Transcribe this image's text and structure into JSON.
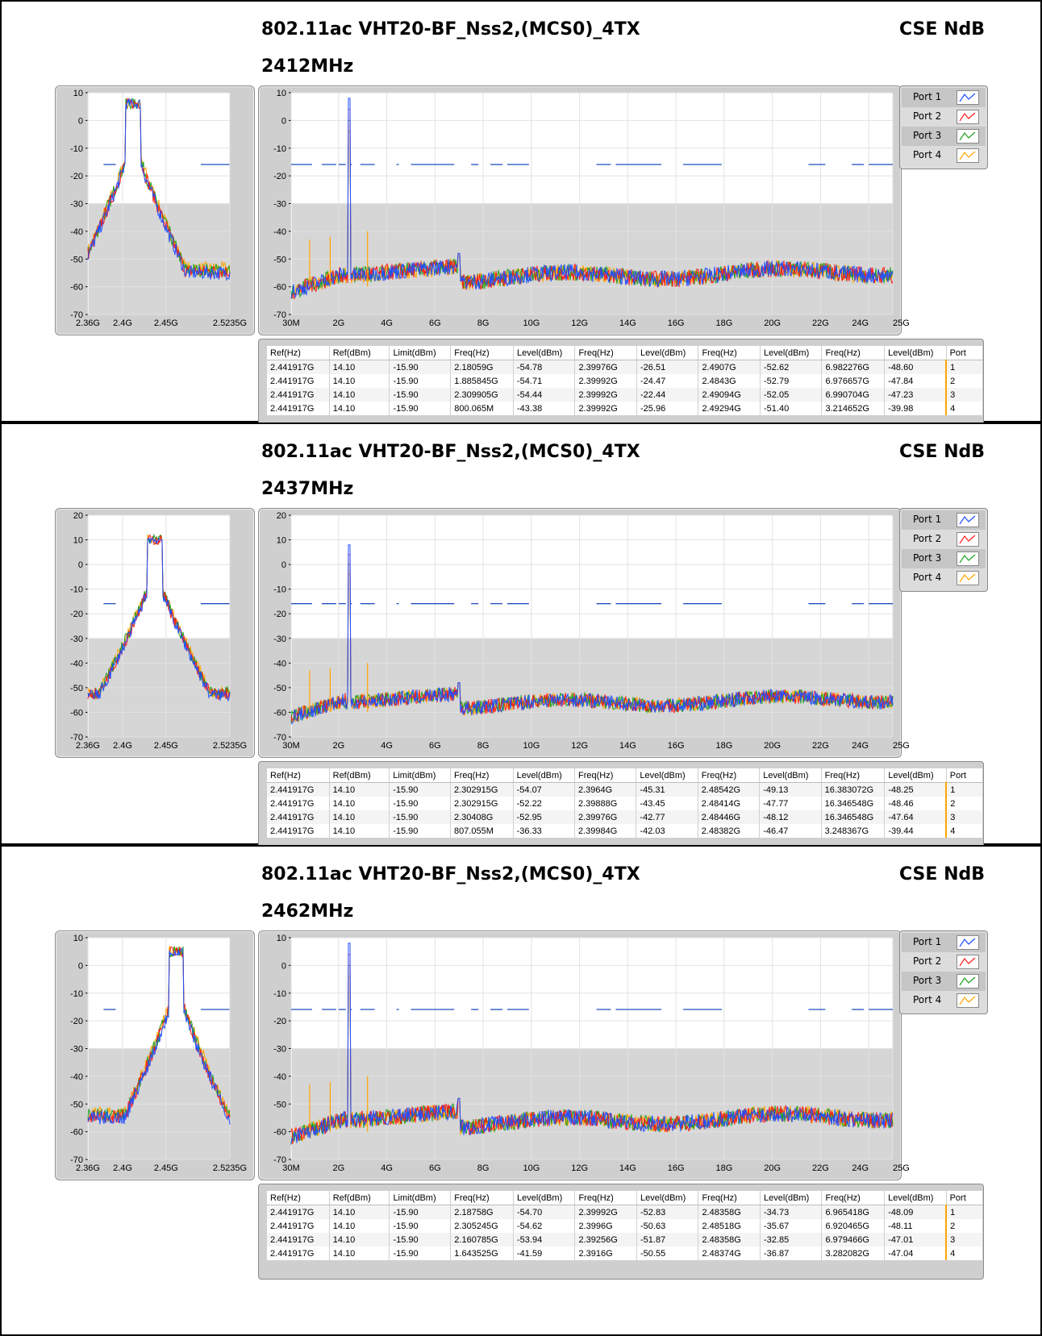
{
  "sections": [
    {
      "title": "802.11ac VHT20-BF_Nss2,(MCS0)_4TX",
      "subtitle": "2412MHz",
      "right_label": "CSE NdB",
      "table": [
        [
          "2.441917G",
          "14.10",
          "-15.90",
          "2.18059G",
          "-54.78",
          "2.39976G",
          "-26.51",
          "2.4907G",
          "-52.62",
          "6.982276G",
          "-48.60",
          "1"
        ],
        [
          "2.441917G",
          "14.10",
          "-15.90",
          "1.885845G",
          "-54.71",
          "2.39992G",
          "-24.47",
          "2.4843G",
          "-52.79",
          "6.976657G",
          "-47.84",
          "2"
        ],
        [
          "2.441917G",
          "14.10",
          "-15.90",
          "2.309905G",
          "-54.44",
          "2.39992G",
          "-22.44",
          "2.49094G",
          "-52.05",
          "6.990704G",
          "-47.23",
          "3"
        ],
        [
          "2.441917G",
          "14.10",
          "-15.90",
          "800.065M",
          "-43.38",
          "2.39992G",
          "-25.96",
          "2.49294G",
          "-51.40",
          "3.214652G",
          "-39.98",
          "4"
        ]
      ]
    },
    {
      "title": "802.11ac VHT20-BF_Nss2,(MCS0)_4TX",
      "subtitle": "2437MHz",
      "right_label": "CSE NdB",
      "table": [
        [
          "2.441917G",
          "14.10",
          "-15.90",
          "2.302915G",
          "-54.07",
          "2.3964G",
          "-45.31",
          "2.48542G",
          "-49.13",
          "16.383072G",
          "-48.25",
          "1"
        ],
        [
          "2.441917G",
          "14.10",
          "-15.90",
          "2.302915G",
          "-52.22",
          "2.39888G",
          "-43.45",
          "2.48414G",
          "-47.77",
          "16.346548G",
          "-48.46",
          "2"
        ],
        [
          "2.441917G",
          "14.10",
          "-15.90",
          "2.30408G",
          "-52.95",
          "2.39976G",
          "-42.77",
          "2.48446G",
          "-48.12",
          "16.346548G",
          "-47.64",
          "3"
        ],
        [
          "2.441917G",
          "14.10",
          "-15.90",
          "807.055M",
          "-36.33",
          "2.39984G",
          "-42.03",
          "2.48382G",
          "-46.47",
          "3.248367G",
          "-39.44",
          "4"
        ]
      ]
    },
    {
      "title": "802.11ac VHT20-BF_Nss2,(MCS0)_4TX",
      "subtitle": "2462MHz",
      "right_label": "CSE NdB",
      "table": [
        [
          "2.441917G",
          "14.10",
          "-15.90",
          "2.18758G",
          "-54.70",
          "2.39992G",
          "-52.83",
          "2.48358G",
          "-34.73",
          "6.965418G",
          "-48.09",
          "1"
        ],
        [
          "2.441917G",
          "14.10",
          "-15.90",
          "2.305245G",
          "-54.62",
          "2.3996G",
          "-50.63",
          "2.48518G",
          "-35.67",
          "6.920465G",
          "-48.11",
          "2"
        ],
        [
          "2.441917G",
          "14.10",
          "-15.90",
          "2.160785G",
          "-53.94",
          "2.39256G",
          "-51.87",
          "2.48358G",
          "-32.85",
          "6.979466G",
          "-47.01",
          "3"
        ],
        [
          "2.441917G",
          "14.10",
          "-15.90",
          "1.643525G",
          "-41.59",
          "2.3916G",
          "-50.55",
          "2.48374G",
          "-36.87",
          "3.282082G",
          "-47.04",
          "4"
        ]
      ]
    }
  ],
  "table_headers": [
    "Ref(Hz)",
    "Ref(dBm)",
    "Limit(dBm)",
    "Freq(Hz)",
    "Level(dBm)",
    "Freq(Hz)",
    "Level(dBm)",
    "Freq(Hz)",
    "Level(dBm)",
    "Freq(Hz)",
    "Level(dBm)",
    "Port"
  ],
  "legend": [
    {
      "label": "Port 1",
      "color": "#1f4fff"
    },
    {
      "label": "Port 2",
      "color": "#ff1a1a"
    },
    {
      "label": "Port 3",
      "color": "#1ea01e"
    },
    {
      "label": "Port 4",
      "color": "#ffa500"
    }
  ],
  "limit_color": "#1f4fbf",
  "chart_data": [
    {
      "type": "line",
      "panel": "left",
      "x_ticks": [
        "2.36G",
        "2.4G",
        "2.45G",
        "2.5235G"
      ],
      "xlim": [
        2.36,
        2.5235
      ],
      "y_ticks": [
        10,
        0,
        -10,
        -20,
        -30,
        -40,
        -50,
        -60,
        -70
      ],
      "ylim": [
        -70,
        10
      ],
      "center": 2.412,
      "peak": 6,
      "floor": -55,
      "limit_level": -15.9
    },
    {
      "type": "line",
      "panel": "right",
      "x_ticks": [
        "30M",
        "2G",
        "4G",
        "6G",
        "8G",
        "10G",
        "12G",
        "14G",
        "16G",
        "18G",
        "20G",
        "22G",
        "24G",
        "25G"
      ],
      "xlim": [
        0.03,
        25
      ],
      "y_ticks": [
        10,
        0,
        -10,
        -20,
        -30,
        -40,
        -50,
        -60,
        -70
      ],
      "ylim": [
        -70,
        10
      ],
      "limit_level": -15.9
    },
    {
      "type": "line",
      "panel": "left",
      "x_ticks": [
        "2.36G",
        "2.4G",
        "2.45G",
        "2.5235G"
      ],
      "xlim": [
        2.36,
        2.5235
      ],
      "y_ticks": [
        20,
        10,
        0,
        -10,
        -20,
        -30,
        -40,
        -50,
        -60,
        -70
      ],
      "ylim": [
        -70,
        20
      ],
      "center": 2.437,
      "peak": 10,
      "floor": -53,
      "limit_level": -15.9
    },
    {
      "type": "line",
      "panel": "right",
      "x_ticks": [
        "30M",
        "2G",
        "4G",
        "6G",
        "8G",
        "10G",
        "12G",
        "14G",
        "16G",
        "18G",
        "20G",
        "22G",
        "24G",
        "25G"
      ],
      "xlim": [
        0.03,
        25
      ],
      "y_ticks": [
        20,
        10,
        0,
        -10,
        -20,
        -30,
        -40,
        -50,
        -60,
        -70
      ],
      "ylim": [
        -70,
        20
      ],
      "limit_level": -15.9
    },
    {
      "type": "line",
      "panel": "left",
      "x_ticks": [
        "2.36G",
        "2.4G",
        "2.45G",
        "2.5235G"
      ],
      "xlim": [
        2.36,
        2.5235
      ],
      "y_ticks": [
        10,
        0,
        -10,
        -20,
        -30,
        -40,
        -50,
        -60,
        -70
      ],
      "ylim": [
        -70,
        10
      ],
      "center": 2.462,
      "peak": 5,
      "floor": -55,
      "limit_level": -15.9
    },
    {
      "type": "line",
      "panel": "right",
      "x_ticks": [
        "30M",
        "2G",
        "4G",
        "6G",
        "8G",
        "10G",
        "12G",
        "14G",
        "16G",
        "18G",
        "20G",
        "22G",
        "24G",
        "25G"
      ],
      "xlim": [
        0.03,
        25
      ],
      "y_ticks": [
        10,
        0,
        -10,
        -20,
        -30,
        -40,
        -50,
        -60,
        -70
      ],
      "ylim": [
        -70,
        10
      ],
      "limit_level": -15.9
    }
  ]
}
